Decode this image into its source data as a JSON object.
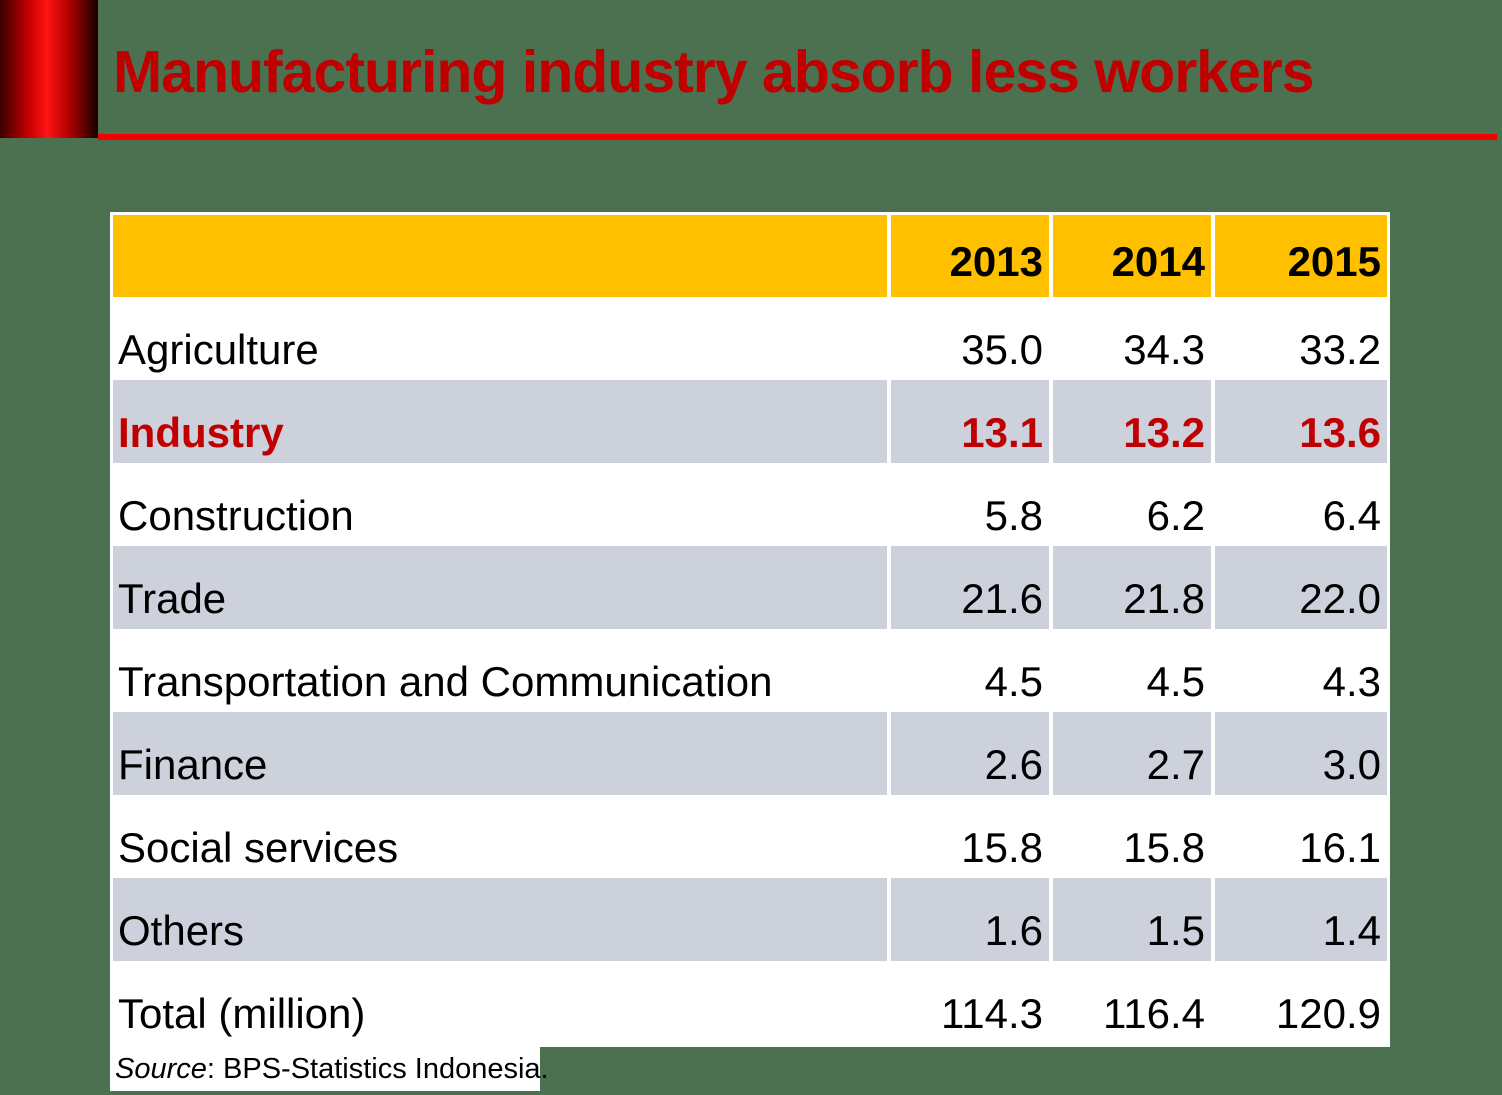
{
  "title": "Manufacturing industry absorb less workers",
  "colors": {
    "background_green": "#4C7150",
    "title_red": "#C00000",
    "rule_red": "#F40000",
    "header_yellow": "#FFC000",
    "band_gray": "#CDD1DB",
    "highlight_red": "#C00000",
    "table_white": "#FFFFFF"
  },
  "table": {
    "year_headers": [
      "2013",
      "2014",
      "2015"
    ],
    "rows": [
      {
        "label": "Agriculture",
        "values": [
          "35.0",
          "34.3",
          "33.2"
        ]
      },
      {
        "label": "Industry",
        "values": [
          "13.1",
          "13.2",
          "13.6"
        ]
      },
      {
        "label": "Construction",
        "values": [
          "5.8",
          "6.2",
          "6.4"
        ]
      },
      {
        "label": "Trade",
        "values": [
          "21.6",
          "21.8",
          "22.0"
        ]
      },
      {
        "label": "Transportation and Communication",
        "values": [
          "4.5",
          "4.5",
          "4.3"
        ]
      },
      {
        "label": "Finance",
        "values": [
          "2.6",
          "2.7",
          "3.0"
        ]
      },
      {
        "label": "Social services",
        "values": [
          "15.8",
          "15.8",
          "16.1"
        ]
      },
      {
        "label": "Others",
        "values": [
          "1.6",
          "1.5",
          "1.4"
        ]
      },
      {
        "label": "Total (million)",
        "values": [
          "114.3",
          "116.4",
          "120.9"
        ]
      }
    ]
  },
  "source": {
    "prefix": "Source",
    "rest": ": BPS-Statistics Indonesia."
  },
  "chart_data": {
    "type": "table",
    "title": "Manufacturing industry absorb less workers",
    "categories": [
      "2013",
      "2014",
      "2015"
    ],
    "series": [
      {
        "name": "Agriculture",
        "values": [
          35.0,
          34.3,
          33.2
        ]
      },
      {
        "name": "Industry",
        "values": [
          13.1,
          13.2,
          13.6
        ]
      },
      {
        "name": "Construction",
        "values": [
          5.8,
          6.2,
          6.4
        ]
      },
      {
        "name": "Trade",
        "values": [
          21.6,
          21.8,
          22.0
        ]
      },
      {
        "name": "Transportation and Communication",
        "values": [
          4.5,
          4.5,
          4.3
        ]
      },
      {
        "name": "Finance",
        "values": [
          2.6,
          2.7,
          3.0
        ]
      },
      {
        "name": "Social services",
        "values": [
          15.8,
          15.8,
          16.1
        ]
      },
      {
        "name": "Others",
        "values": [
          1.6,
          1.5,
          1.4
        ]
      },
      {
        "name": "Total (million)",
        "values": [
          114.3,
          116.4,
          120.9
        ]
      }
    ]
  }
}
